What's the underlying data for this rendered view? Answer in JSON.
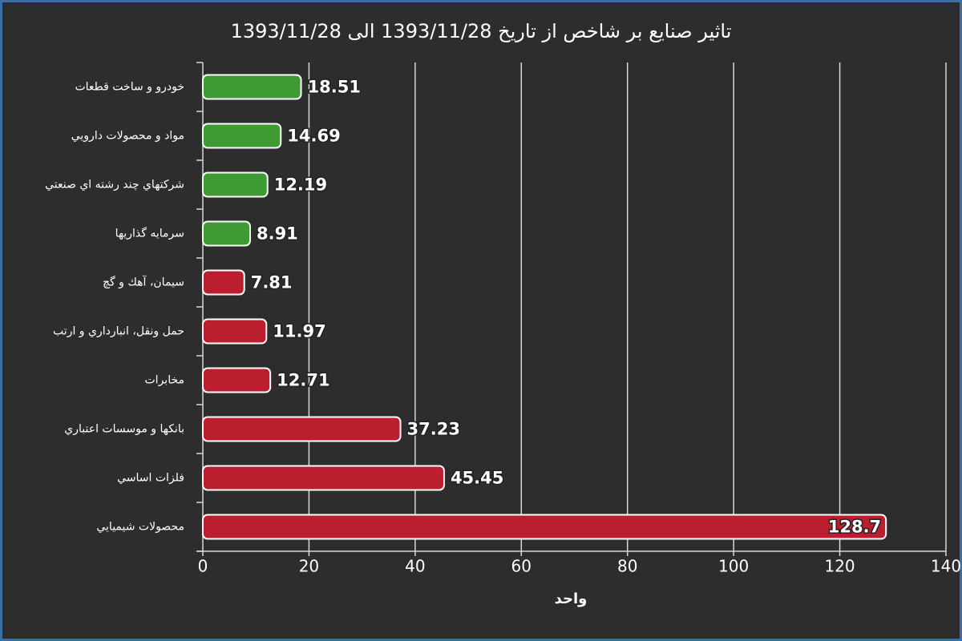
{
  "chart_data": {
    "type": "hbar",
    "title": "تاثير صنايع بر شاخص از تاريخ 1393/11/28 الى 1393/11/28",
    "x_label": "واحد",
    "categories": [
      "خودرو و ساخت قطعات",
      "مواد و محصولات دارويي",
      "شركتهاي چند رشته اي صنعتي",
      "سرمايه گذاريها",
      "سيمان، آهك و گچ",
      "حمل ونقل، انبارداري و ارتب",
      "مخابرات",
      "بانكها و موسسات اعتباري",
      "فلزات اساسي",
      "محصولات شيميايي"
    ],
    "values": [
      18.51,
      14.69,
      12.19,
      8.91,
      7.81,
      11.97,
      12.71,
      37.23,
      45.45,
      128.7
    ],
    "colors": [
      "#3f9a33",
      "#3f9a33",
      "#3f9a33",
      "#3f9a33",
      "#bb1f2f",
      "#bb1f2f",
      "#bb1f2f",
      "#bb1f2f",
      "#bb1f2f",
      "#bb1f2f"
    ],
    "xlim": [
      0,
      140
    ],
    "xticks": [
      0,
      20,
      40,
      60,
      80,
      100,
      120,
      140
    ],
    "grid": true
  }
}
